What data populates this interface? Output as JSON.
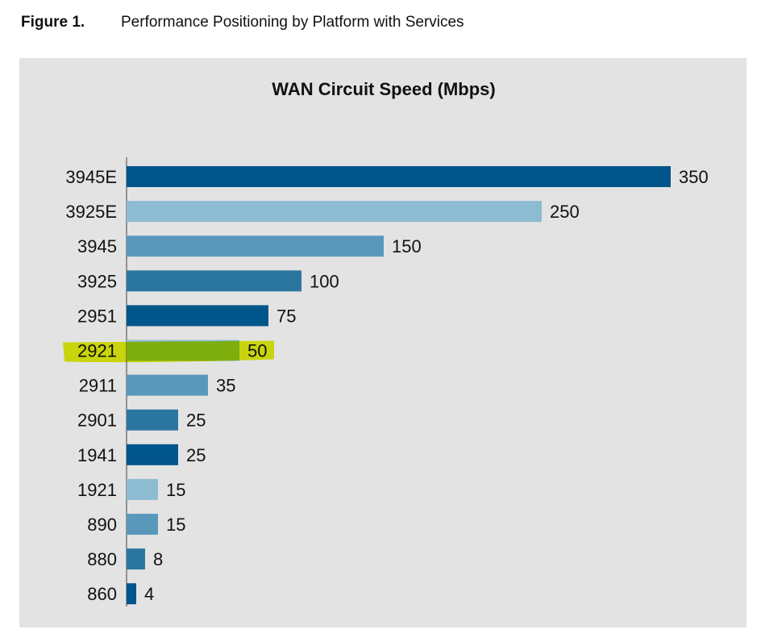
{
  "figure": {
    "number": "Figure 1.",
    "caption": "Performance Positioning by Platform with Services"
  },
  "chart_data": {
    "type": "bar",
    "orientation": "horizontal",
    "title": "WAN Circuit Speed (Mbps)",
    "categories": [
      "3945E",
      "3925E",
      "3945",
      "3925",
      "2951",
      "2921",
      "2911",
      "2901",
      "1941",
      "1921",
      "890",
      "880",
      "860"
    ],
    "values": [
      350,
      250,
      150,
      100,
      75,
      50,
      35,
      25,
      25,
      15,
      15,
      8,
      4
    ],
    "colors": [
      "#00558a",
      "#8dbbd2",
      "#5a98bb",
      "#2b76a0"
    ],
    "highlighted_category": "2921",
    "highlight_color": "#e2ee10",
    "grid": false,
    "data_labels": true
  }
}
